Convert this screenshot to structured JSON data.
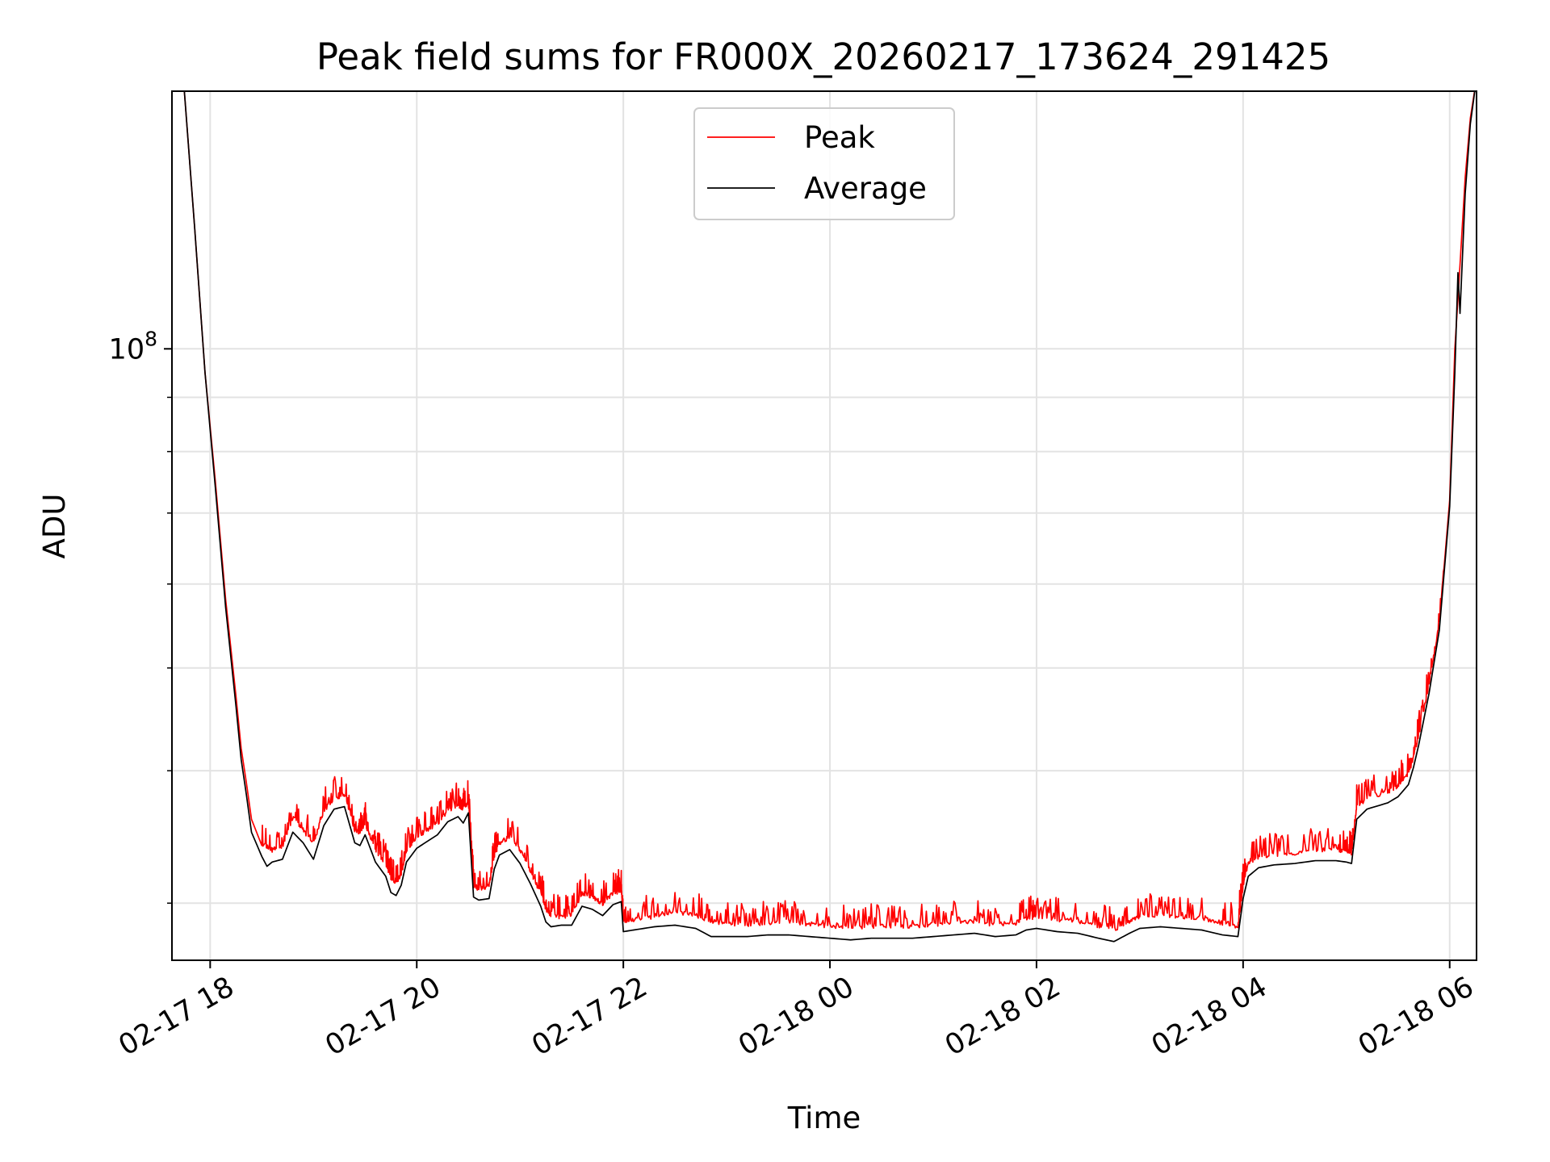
{
  "chart_data": {
    "type": "line",
    "title": "Peak field sums for FR000X_20260217_173624_291425",
    "xlabel": "Time",
    "ylabel": "ADU",
    "yscale": "log",
    "grid": true,
    "legend_position": "top-center",
    "x_unit": "hours since 02-17 18:00",
    "xlim": [
      -0.37,
      12.26
    ],
    "ylim": [
      26500000,
      175000000
    ],
    "x_ticks": [
      {
        "value": 0,
        "label": "02-17 18"
      },
      {
        "value": 2,
        "label": "02-17 20"
      },
      {
        "value": 4,
        "label": "02-17 22"
      },
      {
        "value": 6,
        "label": "02-18 00"
      },
      {
        "value": 8,
        "label": "02-18 02"
      },
      {
        "value": 10,
        "label": "02-18 04"
      },
      {
        "value": 12,
        "label": "02-18 06"
      }
    ],
    "y_major_ticks": [
      {
        "value": 100000000,
        "base": "10",
        "exponent": "8"
      }
    ],
    "colors": {
      "peak": "#ff0000",
      "average": "#000000"
    },
    "series": [
      {
        "name": "Peak",
        "key": "peak",
        "points": [
          [
            -0.37,
            180000000
          ],
          [
            -0.25,
            175000000
          ],
          [
            -0.15,
            130000000
          ],
          [
            -0.05,
            95000000
          ],
          [
            0.05,
            75000000
          ],
          [
            0.15,
            58000000
          ],
          [
            0.25,
            47000000
          ],
          [
            0.3,
            42000000
          ],
          [
            0.35,
            39000000
          ],
          [
            0.4,
            36000000
          ],
          [
            0.5,
            34000000
          ],
          [
            0.6,
            33500000
          ],
          [
            0.7,
            33800000
          ],
          [
            0.8,
            36000000
          ],
          [
            0.9,
            35000000
          ],
          [
            1.0,
            34000000
          ],
          [
            1.1,
            36500000
          ],
          [
            1.2,
            37500000
          ],
          [
            1.3,
            37800000
          ],
          [
            1.4,
            35000000
          ],
          [
            1.45,
            34800000
          ],
          [
            1.5,
            35500000
          ],
          [
            1.55,
            34500000
          ],
          [
            1.6,
            33500000
          ],
          [
            1.7,
            32500000
          ],
          [
            1.75,
            31500000
          ],
          [
            1.8,
            31200000
          ],
          [
            1.85,
            31800000
          ],
          [
            1.9,
            33500000
          ],
          [
            2.0,
            34500000
          ],
          [
            2.1,
            35000000
          ],
          [
            2.2,
            35500000
          ],
          [
            2.3,
            36500000
          ],
          [
            2.4,
            37000000
          ],
          [
            2.45,
            36500000
          ],
          [
            2.5,
            37200000
          ],
          [
            2.55,
            31000000
          ],
          [
            2.6,
            30800000
          ],
          [
            2.7,
            31000000
          ],
          [
            2.75,
            33000000
          ],
          [
            2.8,
            34000000
          ],
          [
            2.9,
            34500000
          ],
          [
            3.0,
            33500000
          ],
          [
            3.1,
            32000000
          ],
          [
            3.2,
            30500000
          ],
          [
            3.25,
            29500000
          ],
          [
            3.3,
            29000000
          ],
          [
            3.4,
            29000000
          ],
          [
            3.5,
            29100000
          ],
          [
            3.6,
            30500000
          ],
          [
            3.7,
            30300000
          ],
          [
            3.8,
            29800000
          ],
          [
            3.9,
            30500000
          ],
          [
            3.98,
            30700000
          ],
          [
            4.0,
            28600000
          ],
          [
            4.1,
            28800000
          ],
          [
            4.3,
            29000000
          ],
          [
            4.5,
            29300000
          ],
          [
            4.7,
            29100000
          ],
          [
            4.85,
            28700000
          ],
          [
            5.0,
            28500000
          ],
          [
            5.2,
            28500000
          ],
          [
            5.4,
            28600000
          ],
          [
            5.6,
            28700000
          ],
          [
            5.8,
            28500000
          ],
          [
            6.0,
            28400000
          ],
          [
            6.2,
            28300000
          ],
          [
            6.4,
            28400000
          ],
          [
            6.6,
            28400000
          ],
          [
            6.8,
            28400000
          ],
          [
            7.0,
            28500000
          ],
          [
            7.2,
            28600000
          ],
          [
            7.4,
            28700000
          ],
          [
            7.6,
            28500000
          ],
          [
            7.8,
            28600000
          ],
          [
            7.9,
            28900000
          ],
          [
            8.0,
            29000000
          ],
          [
            8.2,
            28800000
          ],
          [
            8.4,
            28700000
          ],
          [
            8.6,
            28400000
          ],
          [
            8.75,
            28200000
          ],
          [
            8.9,
            28700000
          ],
          [
            9.0,
            29000000
          ],
          [
            9.2,
            29100000
          ],
          [
            9.4,
            29000000
          ],
          [
            9.6,
            28900000
          ],
          [
            9.8,
            28600000
          ],
          [
            9.95,
            28400000
          ],
          [
            10.0,
            31000000
          ],
          [
            10.05,
            32500000
          ],
          [
            10.15,
            33000000
          ],
          [
            10.3,
            33200000
          ],
          [
            10.5,
            33300000
          ],
          [
            10.7,
            33500000
          ],
          [
            10.9,
            33500000
          ],
          [
            11.0,
            33400000
          ],
          [
            11.05,
            33300000
          ],
          [
            11.1,
            36800000
          ],
          [
            11.2,
            37500000
          ],
          [
            11.4,
            38000000
          ],
          [
            11.5,
            38500000
          ],
          [
            11.6,
            39500000
          ],
          [
            11.65,
            41000000
          ],
          [
            11.7,
            43000000
          ],
          [
            11.8,
            48000000
          ],
          [
            11.9,
            55000000
          ],
          [
            12.0,
            72000000
          ],
          [
            12.05,
            100000000
          ],
          [
            12.1,
            120000000
          ],
          [
            12.15,
            145000000
          ],
          [
            12.2,
            165000000
          ],
          [
            12.26,
            180000000
          ]
        ]
      },
      {
        "name": "Average",
        "key": "average",
        "points": [
          [
            -0.37,
            180000000
          ],
          [
            -0.25,
            175000000
          ],
          [
            -0.15,
            130000000
          ],
          [
            -0.05,
            95000000
          ],
          [
            0.05,
            74000000
          ],
          [
            0.15,
            57000000
          ],
          [
            0.25,
            46000000
          ],
          [
            0.3,
            41000000
          ],
          [
            0.35,
            38000000
          ],
          [
            0.4,
            35000000
          ],
          [
            0.5,
            33200000
          ],
          [
            0.55,
            32500000
          ],
          [
            0.6,
            32800000
          ],
          [
            0.7,
            33000000
          ],
          [
            0.8,
            35000000
          ],
          [
            0.9,
            34200000
          ],
          [
            1.0,
            33000000
          ],
          [
            1.1,
            35500000
          ],
          [
            1.2,
            36800000
          ],
          [
            1.3,
            37000000
          ],
          [
            1.4,
            34200000
          ],
          [
            1.45,
            34000000
          ],
          [
            1.5,
            34800000
          ],
          [
            1.55,
            33800000
          ],
          [
            1.6,
            32800000
          ],
          [
            1.7,
            31800000
          ],
          [
            1.75,
            30700000
          ],
          [
            1.8,
            30500000
          ],
          [
            1.85,
            31200000
          ],
          [
            1.9,
            32800000
          ],
          [
            2.0,
            33800000
          ],
          [
            2.1,
            34300000
          ],
          [
            2.2,
            34800000
          ],
          [
            2.3,
            35800000
          ],
          [
            2.4,
            36200000
          ],
          [
            2.45,
            35700000
          ],
          [
            2.5,
            36500000
          ],
          [
            2.55,
            30400000
          ],
          [
            2.6,
            30200000
          ],
          [
            2.7,
            30300000
          ],
          [
            2.75,
            32300000
          ],
          [
            2.8,
            33300000
          ],
          [
            2.9,
            33700000
          ],
          [
            3.0,
            32700000
          ],
          [
            3.1,
            31300000
          ],
          [
            3.2,
            29800000
          ],
          [
            3.25,
            28800000
          ],
          [
            3.3,
            28500000
          ],
          [
            3.4,
            28600000
          ],
          [
            3.5,
            28600000
          ],
          [
            3.6,
            29800000
          ],
          [
            3.7,
            29600000
          ],
          [
            3.8,
            29200000
          ],
          [
            3.9,
            29900000
          ],
          [
            3.98,
            30100000
          ],
          [
            4.0,
            28200000
          ],
          [
            4.1,
            28300000
          ],
          [
            4.3,
            28500000
          ],
          [
            4.5,
            28600000
          ],
          [
            4.7,
            28400000
          ],
          [
            4.85,
            27900000
          ],
          [
            5.0,
            27900000
          ],
          [
            5.2,
            27900000
          ],
          [
            5.4,
            28000000
          ],
          [
            5.6,
            28000000
          ],
          [
            5.8,
            27900000
          ],
          [
            6.0,
            27800000
          ],
          [
            6.2,
            27700000
          ],
          [
            6.4,
            27800000
          ],
          [
            6.6,
            27800000
          ],
          [
            6.8,
            27800000
          ],
          [
            7.0,
            27900000
          ],
          [
            7.2,
            28000000
          ],
          [
            7.4,
            28100000
          ],
          [
            7.6,
            27900000
          ],
          [
            7.8,
            28000000
          ],
          [
            7.9,
            28300000
          ],
          [
            8.0,
            28400000
          ],
          [
            8.2,
            28200000
          ],
          [
            8.4,
            28100000
          ],
          [
            8.6,
            27800000
          ],
          [
            8.75,
            27600000
          ],
          [
            8.9,
            28100000
          ],
          [
            9.0,
            28400000
          ],
          [
            9.2,
            28500000
          ],
          [
            9.4,
            28400000
          ],
          [
            9.6,
            28300000
          ],
          [
            9.8,
            28000000
          ],
          [
            9.95,
            27900000
          ],
          [
            10.0,
            30300000
          ],
          [
            10.05,
            31800000
          ],
          [
            10.15,
            32400000
          ],
          [
            10.3,
            32600000
          ],
          [
            10.5,
            32700000
          ],
          [
            10.7,
            32900000
          ],
          [
            10.9,
            32900000
          ],
          [
            11.0,
            32800000
          ],
          [
            11.05,
            32700000
          ],
          [
            11.1,
            36000000
          ],
          [
            11.2,
            36800000
          ],
          [
            11.4,
            37300000
          ],
          [
            11.5,
            37800000
          ],
          [
            11.6,
            38800000
          ],
          [
            11.65,
            40300000
          ],
          [
            11.7,
            42300000
          ],
          [
            11.8,
            47300000
          ],
          [
            11.9,
            54300000
          ],
          [
            12.0,
            71000000
          ],
          [
            12.05,
            95000000
          ],
          [
            12.08,
            118000000
          ],
          [
            12.1,
            108000000
          ],
          [
            12.15,
            140000000
          ],
          [
            12.2,
            163000000
          ],
          [
            12.26,
            180000000
          ]
        ]
      }
    ]
  }
}
